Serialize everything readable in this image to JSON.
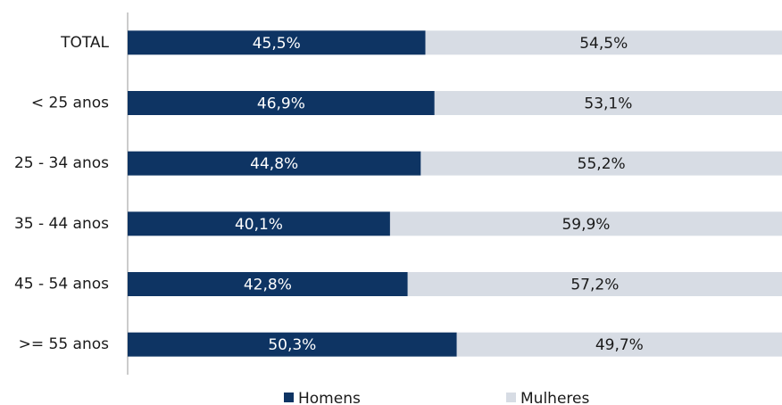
{
  "chart_data": {
    "type": "stacked_barh",
    "categories": [
      "TOTAL",
      "< 25 anos",
      "25 - 34 anos",
      "35 - 44 anos",
      "45 - 54 anos",
      ">= 55 anos"
    ],
    "series": [
      {
        "name": "Homens",
        "color": "#0e3463",
        "label_color": "#ffffff",
        "values": [
          45.5,
          46.9,
          44.8,
          40.1,
          42.8,
          50.3
        ],
        "value_labels": [
          "45,5%",
          "46,9%",
          "44,8%",
          "40,1%",
          "42,8%",
          "50,3%"
        ]
      },
      {
        "name": "Mulheres",
        "color": "#d7dce4",
        "label_color": "#1a1a1a",
        "values": [
          54.5,
          53.1,
          55.2,
          59.9,
          57.2,
          49.7
        ],
        "value_labels": [
          "54,5%",
          "53,1%",
          "55,2%",
          "59,9%",
          "57,2%",
          "49,7%"
        ]
      }
    ],
    "legend": "bottom"
  }
}
